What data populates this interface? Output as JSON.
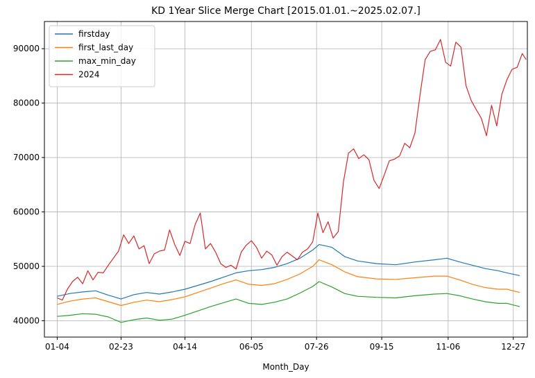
{
  "chart_data": {
    "type": "line",
    "title": "KD 1Year Slice Merge Chart [2015.01.01.~2025.02.07.]",
    "xlabel": "Month_Day",
    "ylabel": "",
    "xlim": [
      -10,
      368
    ],
    "ylim": [
      37000,
      95000
    ],
    "grid": true,
    "legend_position": "top-left",
    "x_ticks": [
      {
        "x": 0,
        "label": "01-04"
      },
      {
        "x": 50,
        "label": "02-23"
      },
      {
        "x": 100,
        "label": "04-14"
      },
      {
        "x": 152,
        "label": "06-05"
      },
      {
        "x": 203,
        "label": "07-26"
      },
      {
        "x": 254,
        "label": "09-15"
      },
      {
        "x": 306,
        "label": "11-06"
      },
      {
        "x": 357,
        "label": "12-27"
      }
    ],
    "y_ticks": [
      40000,
      50000,
      60000,
      70000,
      80000,
      90000
    ],
    "series": [
      {
        "name": "firstday",
        "color": "#1f77b4",
        "points": [
          [
            0,
            44500
          ],
          [
            10,
            45000
          ],
          [
            20,
            45300
          ],
          [
            30,
            45500
          ],
          [
            40,
            44700
          ],
          [
            50,
            44000
          ],
          [
            60,
            44800
          ],
          [
            70,
            45200
          ],
          [
            80,
            44900
          ],
          [
            90,
            45300
          ],
          [
            100,
            45800
          ],
          [
            110,
            46500
          ],
          [
            120,
            47200
          ],
          [
            130,
            48000
          ],
          [
            140,
            48800
          ],
          [
            150,
            49200
          ],
          [
            160,
            49400
          ],
          [
            170,
            49800
          ],
          [
            180,
            50500
          ],
          [
            190,
            51500
          ],
          [
            200,
            53000
          ],
          [
            205,
            54000
          ],
          [
            215,
            53500
          ],
          [
            225,
            51800
          ],
          [
            235,
            51000
          ],
          [
            250,
            50500
          ],
          [
            265,
            50300
          ],
          [
            280,
            50800
          ],
          [
            295,
            51200
          ],
          [
            305,
            51500
          ],
          [
            315,
            50800
          ],
          [
            325,
            50200
          ],
          [
            335,
            49600
          ],
          [
            345,
            49200
          ],
          [
            352,
            48800
          ],
          [
            362,
            48300
          ]
        ]
      },
      {
        "name": "first_last_day",
        "color": "#ff7f0e",
        "points": [
          [
            0,
            43000
          ],
          [
            10,
            43600
          ],
          [
            20,
            44000
          ],
          [
            30,
            44200
          ],
          [
            40,
            43500
          ],
          [
            50,
            42800
          ],
          [
            60,
            43400
          ],
          [
            70,
            43800
          ],
          [
            80,
            43500
          ],
          [
            90,
            43900
          ],
          [
            100,
            44400
          ],
          [
            110,
            45200
          ],
          [
            120,
            46000
          ],
          [
            130,
            46800
          ],
          [
            140,
            47500
          ],
          [
            150,
            46700
          ],
          [
            160,
            46500
          ],
          [
            170,
            46800
          ],
          [
            180,
            47600
          ],
          [
            190,
            48600
          ],
          [
            200,
            50000
          ],
          [
            205,
            51200
          ],
          [
            215,
            50300
          ],
          [
            225,
            49000
          ],
          [
            235,
            48100
          ],
          [
            250,
            47700
          ],
          [
            265,
            47600
          ],
          [
            280,
            47900
          ],
          [
            295,
            48200
          ],
          [
            305,
            48200
          ],
          [
            315,
            47500
          ],
          [
            325,
            46700
          ],
          [
            335,
            46100
          ],
          [
            345,
            45800
          ],
          [
            352,
            45800
          ],
          [
            362,
            45200
          ]
        ]
      },
      {
        "name": "max_min_day",
        "color": "#2ca02c",
        "points": [
          [
            0,
            40800
          ],
          [
            10,
            41000
          ],
          [
            20,
            41300
          ],
          [
            30,
            41200
          ],
          [
            40,
            40700
          ],
          [
            50,
            39700
          ],
          [
            60,
            40200
          ],
          [
            70,
            40500
          ],
          [
            80,
            40100
          ],
          [
            90,
            40300
          ],
          [
            100,
            41000
          ],
          [
            110,
            41800
          ],
          [
            120,
            42600
          ],
          [
            130,
            43300
          ],
          [
            140,
            44000
          ],
          [
            150,
            43200
          ],
          [
            160,
            43000
          ],
          [
            170,
            43400
          ],
          [
            180,
            44000
          ],
          [
            190,
            45100
          ],
          [
            200,
            46300
          ],
          [
            205,
            47200
          ],
          [
            215,
            46200
          ],
          [
            225,
            45000
          ],
          [
            235,
            44500
          ],
          [
            250,
            44300
          ],
          [
            265,
            44200
          ],
          [
            280,
            44600
          ],
          [
            295,
            44900
          ],
          [
            305,
            45000
          ],
          [
            315,
            44600
          ],
          [
            325,
            44000
          ],
          [
            335,
            43500
          ],
          [
            345,
            43200
          ],
          [
            352,
            43200
          ],
          [
            362,
            42600
          ]
        ]
      },
      {
        "name": "2024",
        "color": "#d62728",
        "points": [
          [
            0,
            44200
          ],
          [
            4,
            43800
          ],
          [
            8,
            45800
          ],
          [
            12,
            47200
          ],
          [
            16,
            48000
          ],
          [
            20,
            46800
          ],
          [
            24,
            49200
          ],
          [
            28,
            47500
          ],
          [
            32,
            48900
          ],
          [
            36,
            48800
          ],
          [
            40,
            50200
          ],
          [
            44,
            51500
          ],
          [
            48,
            52800
          ],
          [
            52,
            55800
          ],
          [
            56,
            54200
          ],
          [
            60,
            55600
          ],
          [
            64,
            53200
          ],
          [
            68,
            53800
          ],
          [
            72,
            50500
          ],
          [
            76,
            52300
          ],
          [
            80,
            52800
          ],
          [
            84,
            53000
          ],
          [
            88,
            56700
          ],
          [
            92,
            54000
          ],
          [
            96,
            52000
          ],
          [
            100,
            54600
          ],
          [
            104,
            54200
          ],
          [
            108,
            57700
          ],
          [
            112,
            59800
          ],
          [
            116,
            53200
          ],
          [
            120,
            54200
          ],
          [
            124,
            52600
          ],
          [
            128,
            50500
          ],
          [
            132,
            49800
          ],
          [
            136,
            50200
          ],
          [
            140,
            49500
          ],
          [
            144,
            52600
          ],
          [
            148,
            53900
          ],
          [
            152,
            54700
          ],
          [
            156,
            53500
          ],
          [
            160,
            51500
          ],
          [
            164,
            52800
          ],
          [
            168,
            52100
          ],
          [
            172,
            50200
          ],
          [
            176,
            51800
          ],
          [
            180,
            52600
          ],
          [
            184,
            51900
          ],
          [
            188,
            51200
          ],
          [
            192,
            52600
          ],
          [
            196,
            53200
          ],
          [
            200,
            54500
          ],
          [
            204,
            59800
          ],
          [
            208,
            56200
          ],
          [
            212,
            58200
          ],
          [
            216,
            55200
          ],
          [
            220,
            56400
          ],
          [
            224,
            65500
          ],
          [
            228,
            70800
          ],
          [
            232,
            71600
          ],
          [
            236,
            69800
          ],
          [
            240,
            70500
          ],
          [
            244,
            69600
          ],
          [
            248,
            65800
          ],
          [
            252,
            64300
          ],
          [
            256,
            66800
          ],
          [
            260,
            69400
          ],
          [
            264,
            69700
          ],
          [
            268,
            70300
          ],
          [
            272,
            72600
          ],
          [
            276,
            71800
          ],
          [
            280,
            74500
          ],
          [
            284,
            81500
          ],
          [
            288,
            88000
          ],
          [
            292,
            89500
          ],
          [
            296,
            89800
          ],
          [
            300,
            91700
          ],
          [
            304,
            87500
          ],
          [
            308,
            86800
          ],
          [
            312,
            91200
          ],
          [
            316,
            90300
          ],
          [
            320,
            83200
          ],
          [
            324,
            80500
          ],
          [
            328,
            78800
          ],
          [
            332,
            77200
          ],
          [
            336,
            74000
          ],
          [
            340,
            79600
          ],
          [
            344,
            75800
          ],
          [
            348,
            81600
          ],
          [
            352,
            84300
          ],
          [
            356,
            86200
          ],
          [
            360,
            86600
          ],
          [
            364,
            89100
          ],
          [
            367,
            88000
          ]
        ]
      }
    ]
  }
}
